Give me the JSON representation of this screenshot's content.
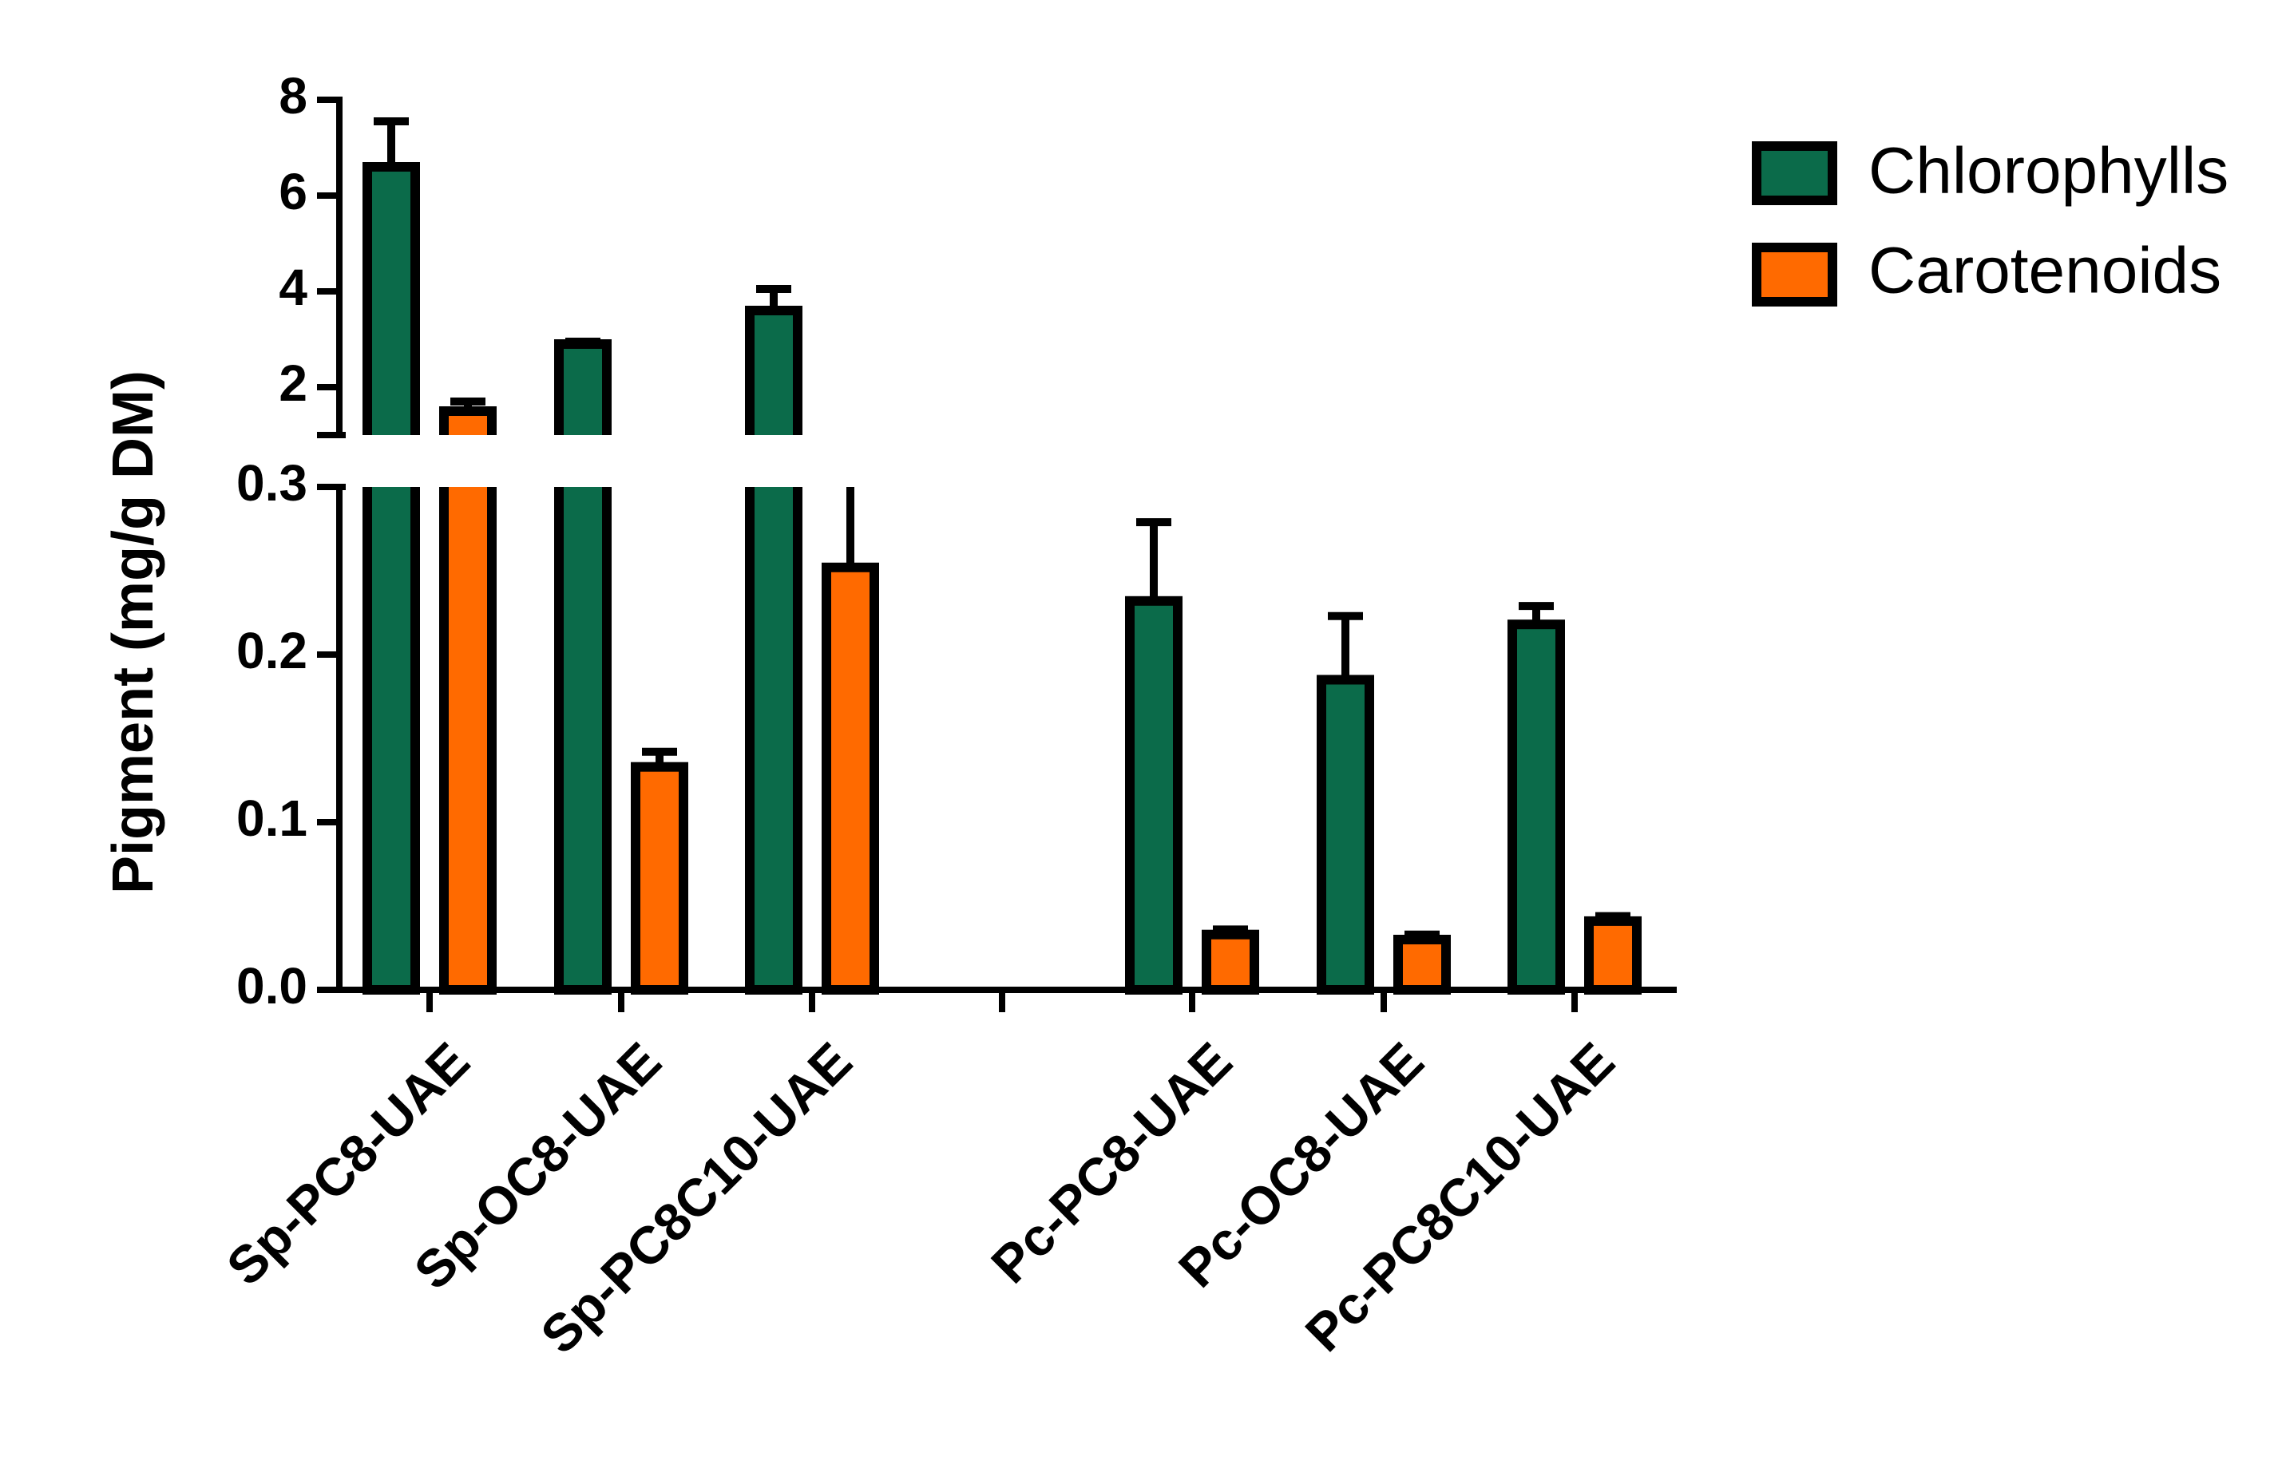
{
  "chart_data": {
    "type": "bar",
    "title": "",
    "xlabel": "",
    "ylabel": "Pigment (mg/g DM)",
    "y_axis_broken": true,
    "ylim_lower_segment": [
      0,
      0.3
    ],
    "ylim_upper_segment": [
      1,
      8
    ],
    "yticks_lower": [
      "0.0",
      "0.1",
      "0.2",
      "0.3"
    ],
    "yticks_upper": [
      "2",
      "4",
      "6",
      "8"
    ],
    "grid": false,
    "legend_position": "top-right",
    "categories": [
      "Sp-PC8-UAE",
      "Sp-OC8-UAE",
      "Sp-PC8C10-UAE",
      "",
      "Pc-PC8-UAE",
      "Pc-OC8-UAE",
      "Pc-PC8C10-UAE"
    ],
    "series": [
      {
        "name": "Chlorophylls",
        "color": "#0b6b4a",
        "values": [
          6.6,
          2.9,
          3.6,
          null,
          0.232,
          0.185,
          0.218
        ],
        "errors": [
          0.95,
          0.05,
          0.45,
          null,
          0.047,
          0.038,
          0.011
        ]
      },
      {
        "name": "Carotenoids",
        "color": "#ff6a00",
        "values": [
          1.5,
          0.133,
          0.252,
          null,
          0.033,
          0.03,
          0.041
        ],
        "errors": [
          0.2,
          0.009,
          0.05,
          null,
          0.003,
          0.003,
          0.003
        ]
      }
    ]
  }
}
